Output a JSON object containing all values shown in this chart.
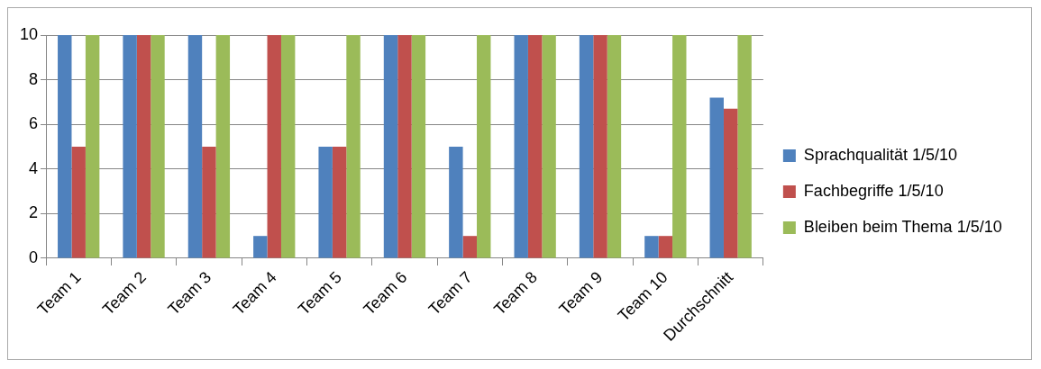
{
  "chart_data": {
    "type": "bar",
    "categories": [
      "Team 1",
      "Team 2",
      "Team 3",
      "Team 4",
      "Team 5",
      "Team 6",
      "Team 7",
      "Team 8",
      "Team 9",
      "Team 10",
      "Durchschnitt"
    ],
    "series": [
      {
        "name": "Sprachqualität 1/5/10",
        "color": "#4f81bd",
        "values": [
          10,
          10,
          10,
          1,
          5,
          10,
          5,
          10,
          10,
          1,
          7.2
        ]
      },
      {
        "name": "Fachbegriffe 1/5/10",
        "color": "#c0504d",
        "values": [
          5,
          10,
          5,
          10,
          5,
          10,
          1,
          10,
          10,
          1,
          6.7
        ]
      },
      {
        "name": "Bleiben beim Thema 1/5/10",
        "color": "#9bbb59",
        "values": [
          10,
          10,
          10,
          10,
          10,
          10,
          10,
          10,
          10,
          10,
          10
        ]
      }
    ],
    "ylim": [
      0,
      10
    ],
    "yticks": [
      0,
      2,
      4,
      6,
      8,
      10
    ],
    "grid": "y",
    "legend": "right"
  }
}
